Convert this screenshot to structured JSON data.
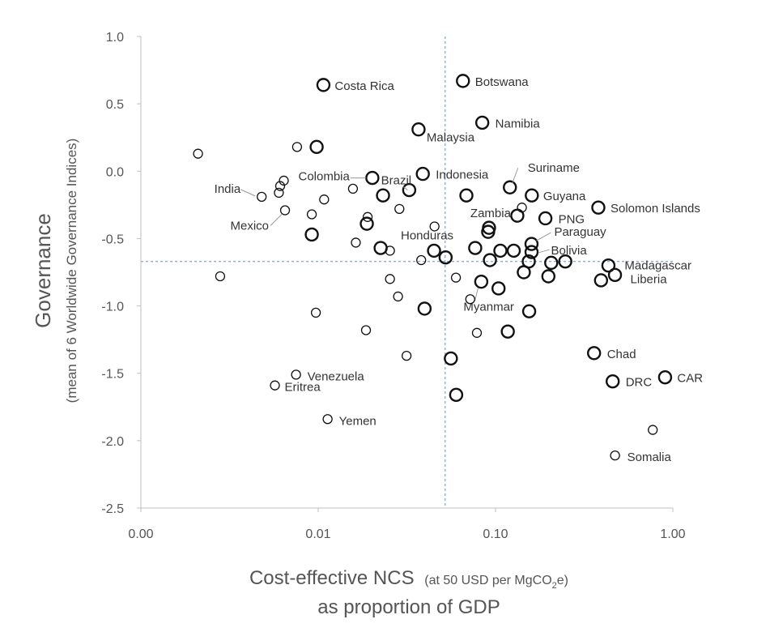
{
  "chart_data": {
    "type": "scatter",
    "xaxis": {
      "scale": "log",
      "range": [
        0.001,
        1.0
      ],
      "ticks": [
        0.001,
        0.01,
        0.1,
        1.0
      ],
      "tick_labels": [
        "0.00",
        "0.01",
        "0.10",
        "1.00"
      ],
      "title_main": "Cost-effective NCS",
      "title_paren_pre": "(at 50 USD per MgCO",
      "title_paren_sub": "2",
      "title_paren_post": "e)",
      "title_line2": "as proportion of GDP"
    },
    "yaxis": {
      "scale": "linear",
      "range": [
        -2.5,
        1.0
      ],
      "ticks": [
        -2.5,
        -2.0,
        -1.5,
        -1.0,
        -0.5,
        0.0,
        0.5,
        1.0
      ],
      "tick_labels": [
        "-2.5",
        "-2.0",
        "-1.5",
        "-1.0",
        "-0.5",
        "0.0",
        "0.5",
        "1.0"
      ],
      "title": "Governance",
      "subtitle": "(mean of 6 Worldwide Governance Indices)"
    },
    "grid": false,
    "reference_lines": {
      "x": 0.052,
      "y": -0.67,
      "style": "dashed",
      "color": "#5b8fd6"
    },
    "points": [
      {
        "x": 0.0107,
        "y": 0.64,
        "size": "large",
        "label": "Costa Rica"
      },
      {
        "x": 0.0655,
        "y": 0.67,
        "size": "large",
        "label": "Botswana"
      },
      {
        "x": 0.0842,
        "y": 0.36,
        "size": "large",
        "label": "Namibia"
      },
      {
        "x": 0.0368,
        "y": 0.31,
        "size": "large",
        "label": "Malaysia"
      },
      {
        "x": 0.0021,
        "y": 0.13,
        "size": "small",
        "label": ""
      },
      {
        "x": 0.0076,
        "y": 0.18,
        "size": "small",
        "label": ""
      },
      {
        "x": 0.0098,
        "y": 0.18,
        "size": "large",
        "label": ""
      },
      {
        "x": 0.0202,
        "y": -0.05,
        "size": "large",
        "label": "Colombia"
      },
      {
        "x": 0.0326,
        "y": -0.14,
        "size": "large",
        "label": "Brazil"
      },
      {
        "x": 0.0389,
        "y": -0.02,
        "size": "large",
        "label": "Indonesia"
      },
      {
        "x": 0.1205,
        "y": -0.12,
        "size": "large",
        "label": "Suriname"
      },
      {
        "x": 0.0064,
        "y": -0.07,
        "size": "small",
        "label": ""
      },
      {
        "x": 0.0061,
        "y": -0.11,
        "size": "small",
        "label": ""
      },
      {
        "x": 0.006,
        "y": -0.16,
        "size": "small",
        "label": ""
      },
      {
        "x": 0.0048,
        "y": -0.19,
        "size": "small",
        "label": "India"
      },
      {
        "x": 0.0108,
        "y": -0.21,
        "size": "small",
        "label": ""
      },
      {
        "x": 0.0157,
        "y": -0.13,
        "size": "small",
        "label": ""
      },
      {
        "x": 0.0232,
        "y": -0.18,
        "size": "large",
        "label": ""
      },
      {
        "x": 0.0685,
        "y": -0.18,
        "size": "large",
        "label": ""
      },
      {
        "x": 0.1602,
        "y": -0.18,
        "size": "large",
        "label": "Guyana"
      },
      {
        "x": 0.0065,
        "y": -0.29,
        "size": "small",
        "label": "Mexico"
      },
      {
        "x": 0.0092,
        "y": -0.32,
        "size": "small",
        "label": ""
      },
      {
        "x": 0.019,
        "y": -0.34,
        "size": "small",
        "label": ""
      },
      {
        "x": 0.0188,
        "y": -0.39,
        "size": "large",
        "label": ""
      },
      {
        "x": 0.0287,
        "y": -0.28,
        "size": "small",
        "label": ""
      },
      {
        "x": 0.1409,
        "y": -0.27,
        "size": "small",
        "label": ""
      },
      {
        "x": 0.1327,
        "y": -0.33,
        "size": "large",
        "label": "Zambia"
      },
      {
        "x": 0.1911,
        "y": -0.35,
        "size": "large",
        "label": "PNG"
      },
      {
        "x": 0.38,
        "y": -0.27,
        "size": "large",
        "label": "Solomon Islands"
      },
      {
        "x": 0.0092,
        "y": -0.47,
        "size": "large",
        "label": ""
      },
      {
        "x": 0.0163,
        "y": -0.53,
        "size": "small",
        "label": ""
      },
      {
        "x": 0.0225,
        "y": -0.57,
        "size": "large",
        "label": ""
      },
      {
        "x": 0.0254,
        "y": -0.59,
        "size": "small",
        "label": ""
      },
      {
        "x": 0.0453,
        "y": -0.41,
        "size": "small",
        "label": ""
      },
      {
        "x": 0.045,
        "y": -0.59,
        "size": "large",
        "label": "Honduras"
      },
      {
        "x": 0.0523,
        "y": -0.64,
        "size": "large",
        "label": ""
      },
      {
        "x": 0.0381,
        "y": -0.66,
        "size": "small",
        "label": ""
      },
      {
        "x": 0.0768,
        "y": -0.57,
        "size": "large",
        "label": ""
      },
      {
        "x": 0.0919,
        "y": -0.42,
        "size": "large",
        "label": ""
      },
      {
        "x": 0.0909,
        "y": -0.45,
        "size": "large",
        "label": ""
      },
      {
        "x": 0.1065,
        "y": -0.59,
        "size": "large",
        "label": ""
      },
      {
        "x": 0.1267,
        "y": -0.59,
        "size": "large",
        "label": ""
      },
      {
        "x": 0.1596,
        "y": -0.54,
        "size": "large",
        "label": "Paraguay"
      },
      {
        "x": 0.1597,
        "y": -0.6,
        "size": "large",
        "label": "Bolivia"
      },
      {
        "x": 0.093,
        "y": -0.66,
        "size": "large",
        "label": ""
      },
      {
        "x": 0.154,
        "y": -0.67,
        "size": "large",
        "label": ""
      },
      {
        "x": 0.2061,
        "y": -0.68,
        "size": "large",
        "label": ""
      },
      {
        "x": 0.2474,
        "y": -0.67,
        "size": "large",
        "label": ""
      },
      {
        "x": 0.4332,
        "y": -0.7,
        "size": "large",
        "label": "Madagascar"
      },
      {
        "x": 0.4717,
        "y": -0.77,
        "size": "large",
        "label": "Liberia"
      },
      {
        "x": 0.3936,
        "y": -0.81,
        "size": "large",
        "label": ""
      },
      {
        "x": 0.1444,
        "y": -0.75,
        "size": "large",
        "label": ""
      },
      {
        "x": 0.1987,
        "y": -0.78,
        "size": "large",
        "label": ""
      },
      {
        "x": 0.0028,
        "y": -0.78,
        "size": "small",
        "label": ""
      },
      {
        "x": 0.0254,
        "y": -0.8,
        "size": "small",
        "label": ""
      },
      {
        "x": 0.0598,
        "y": -0.79,
        "size": "small",
        "label": ""
      },
      {
        "x": 0.0831,
        "y": -0.82,
        "size": "large",
        "label": "Myanmar"
      },
      {
        "x": 0.104,
        "y": -0.87,
        "size": "large",
        "label": ""
      },
      {
        "x": 0.072,
        "y": -0.95,
        "size": "small",
        "label": ""
      },
      {
        "x": 0.0282,
        "y": -0.93,
        "size": "small",
        "label": ""
      },
      {
        "x": 0.0398,
        "y": -1.02,
        "size": "large",
        "label": ""
      },
      {
        "x": 0.0097,
        "y": -1.05,
        "size": "small",
        "label": ""
      },
      {
        "x": 0.1548,
        "y": -1.04,
        "size": "large",
        "label": ""
      },
      {
        "x": 0.0785,
        "y": -1.2,
        "size": "small",
        "label": ""
      },
      {
        "x": 0.1173,
        "y": -1.19,
        "size": "large",
        "label": ""
      },
      {
        "x": 0.0186,
        "y": -1.18,
        "size": "small",
        "label": ""
      },
      {
        "x": 0.0315,
        "y": -1.37,
        "size": "small",
        "label": ""
      },
      {
        "x": 0.056,
        "y": -1.39,
        "size": "large",
        "label": ""
      },
      {
        "x": 0.3595,
        "y": -1.35,
        "size": "large",
        "label": "Chad"
      },
      {
        "x": 0.0075,
        "y": -1.51,
        "size": "small",
        "label": "Venezuela"
      },
      {
        "x": 0.0057,
        "y": -1.59,
        "size": "small",
        "label": "Eritrea"
      },
      {
        "x": 0.4579,
        "y": -1.56,
        "size": "large",
        "label": "DRC"
      },
      {
        "x": 0.9042,
        "y": -1.53,
        "size": "large",
        "label": "CAR"
      },
      {
        "x": 0.06,
        "y": -1.66,
        "size": "large",
        "label": ""
      },
      {
        "x": 0.0113,
        "y": -1.84,
        "size": "small",
        "label": "Yemen"
      },
      {
        "x": 0.7705,
        "y": -1.92,
        "size": "small",
        "label": ""
      },
      {
        "x": 0.4721,
        "y": -2.11,
        "size": "small",
        "label": "Somalia"
      }
    ]
  }
}
